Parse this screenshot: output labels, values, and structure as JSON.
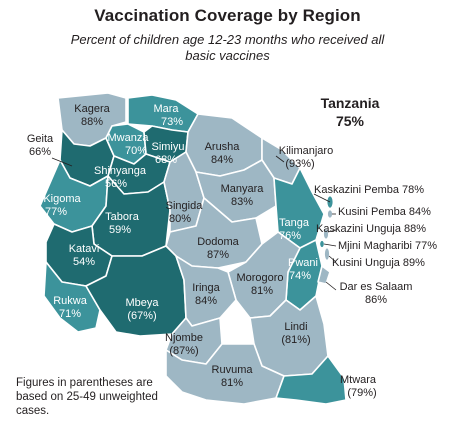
{
  "title": "Vaccination Coverage by Region",
  "subtitle": "Percent of children age 12-23 months who received all basic vaccines",
  "national": {
    "name": "Tanzania",
    "value": "75%"
  },
  "footnote": "Figures in parentheses are based on 25-49 unweighted cases.",
  "colors": {
    "dark": "#1f6b70",
    "mid": "#3c939b",
    "light": "#9eb7c4",
    "lightest": "#b8cad4"
  },
  "regions": [
    {
      "id": "kagera",
      "name": "Kagera",
      "value": "88%",
      "shade": "light"
    },
    {
      "id": "mara",
      "name": "Mara",
      "value": "73%",
      "shade": "mid"
    },
    {
      "id": "geita",
      "name": "Geita",
      "value": "66%",
      "shade": "dark"
    },
    {
      "id": "mwanza",
      "name": "Mwanza",
      "value": "70%",
      "shade": "mid"
    },
    {
      "id": "simiyu",
      "name": "Simiyu",
      "value": "68%",
      "shade": "dark"
    },
    {
      "id": "shinyanga",
      "name": "Shinyanga",
      "value": "56%",
      "shade": "dark"
    },
    {
      "id": "arusha",
      "name": "Arusha",
      "value": "84%",
      "shade": "light"
    },
    {
      "id": "kilimanjaro",
      "name": "Kilimanjaro",
      "value": "(93%)",
      "shade": "light"
    },
    {
      "id": "kigoma",
      "name": "Kigoma",
      "value": "77%",
      "shade": "mid"
    },
    {
      "id": "tabora",
      "name": "Tabora",
      "value": "59%",
      "shade": "dark"
    },
    {
      "id": "singida",
      "name": "Singida",
      "value": "80%",
      "shade": "light"
    },
    {
      "id": "manyara",
      "name": "Manyara",
      "value": "83%",
      "shade": "light"
    },
    {
      "id": "tanga",
      "name": "Tanga",
      "value": "76%",
      "shade": "mid"
    },
    {
      "id": "katavi",
      "name": "Katavi",
      "value": "54%",
      "shade": "dark"
    },
    {
      "id": "dodoma",
      "name": "Dodoma",
      "value": "87%",
      "shade": "light"
    },
    {
      "id": "pwani",
      "name": "Pwani",
      "value": "74%",
      "shade": "mid"
    },
    {
      "id": "morogoro",
      "name": "Morogoro",
      "value": "81%",
      "shade": "light"
    },
    {
      "id": "rukwa",
      "name": "Rukwa",
      "value": "71%",
      "shade": "mid"
    },
    {
      "id": "mbeya",
      "name": "Mbeya",
      "value": "(67%)",
      "shade": "dark"
    },
    {
      "id": "iringa",
      "name": "Iringa",
      "value": "84%",
      "shade": "light"
    },
    {
      "id": "njombe",
      "name": "Njombe",
      "value": "(87%)",
      "shade": "light"
    },
    {
      "id": "lindi",
      "name": "Lindi",
      "value": "(81%)",
      "shade": "light"
    },
    {
      "id": "ruvuma",
      "name": "Ruvuma",
      "value": "81%",
      "shade": "light"
    },
    {
      "id": "mtwara",
      "name": "Mtwara",
      "value": "(79%)",
      "shade": "mid"
    },
    {
      "id": "dar",
      "name": "Dar es Salaam",
      "value": "86%",
      "shade": "light"
    }
  ],
  "islands": [
    {
      "id": "kaskazini-pemba",
      "label": "Kaskazini Pemba 78%"
    },
    {
      "id": "kusini-pemba",
      "label": "Kusini Pemba 84%"
    },
    {
      "id": "kaskazini-unguja",
      "label": "Kaskazini Unguja 88%"
    },
    {
      "id": "mjini-magharibi",
      "label": "Mjini Magharibi 77%"
    },
    {
      "id": "kusini-unguja",
      "label": "Kusini Unguja 89%"
    }
  ]
}
